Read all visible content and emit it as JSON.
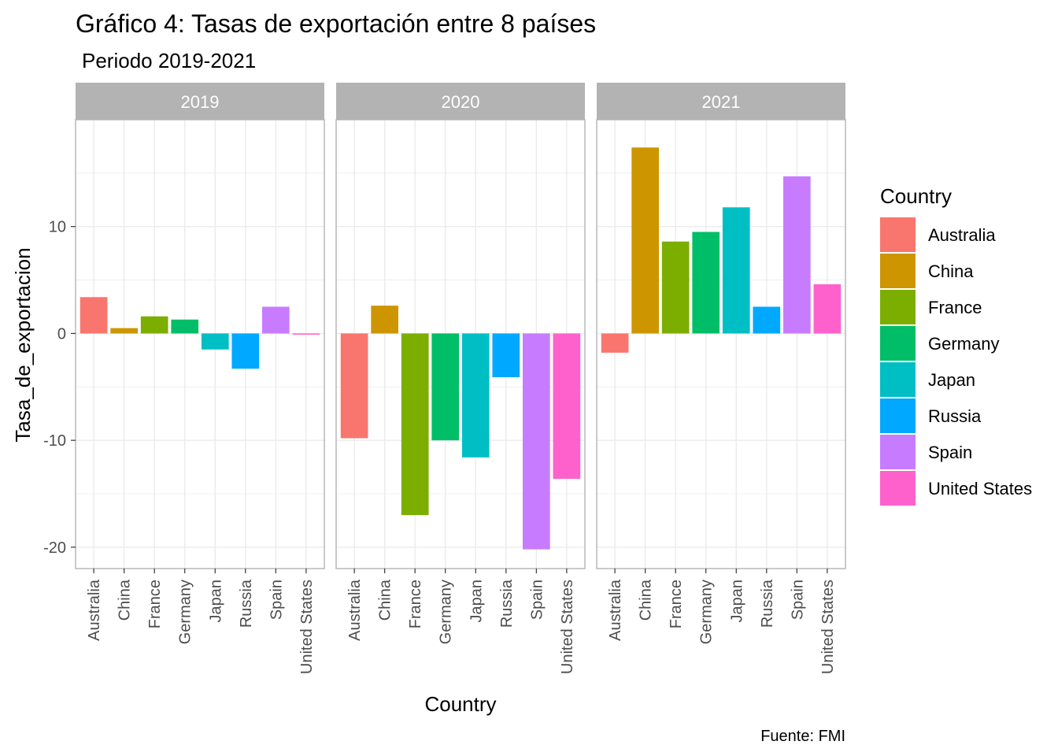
{
  "chart_data": {
    "type": "bar",
    "title": "Gráfico 4: Tasas de exportación entre 8 países",
    "subtitle": "Periodo 2019-2021",
    "caption": "Fuente: FMI",
    "xlabel": "Country",
    "ylabel": "Tasa_de_exportacion",
    "ylim": [
      -22,
      20
    ],
    "yticks": [
      -20,
      -10,
      0,
      10
    ],
    "grid": true,
    "legend": {
      "title": "Country",
      "position": "right"
    },
    "categories": [
      "Australia",
      "China",
      "France",
      "Germany",
      "Japan",
      "Russia",
      "Spain",
      "United States"
    ],
    "colors": [
      "#F8766D",
      "#CD9600",
      "#7CAE00",
      "#00BE67",
      "#00BFC4",
      "#00A9FF",
      "#C77CFF",
      "#FF61CC"
    ],
    "facets": [
      {
        "label": "2019",
        "values": [
          3.4,
          0.5,
          1.6,
          1.3,
          -1.5,
          -3.3,
          2.5,
          -0.1
        ]
      },
      {
        "label": "2020",
        "values": [
          -9.8,
          2.6,
          -17.0,
          -10.0,
          -11.6,
          -4.1,
          -20.2,
          -13.6
        ]
      },
      {
        "label": "2021",
        "values": [
          -1.8,
          17.4,
          8.6,
          9.5,
          11.8,
          2.5,
          14.7,
          4.6
        ]
      }
    ]
  }
}
